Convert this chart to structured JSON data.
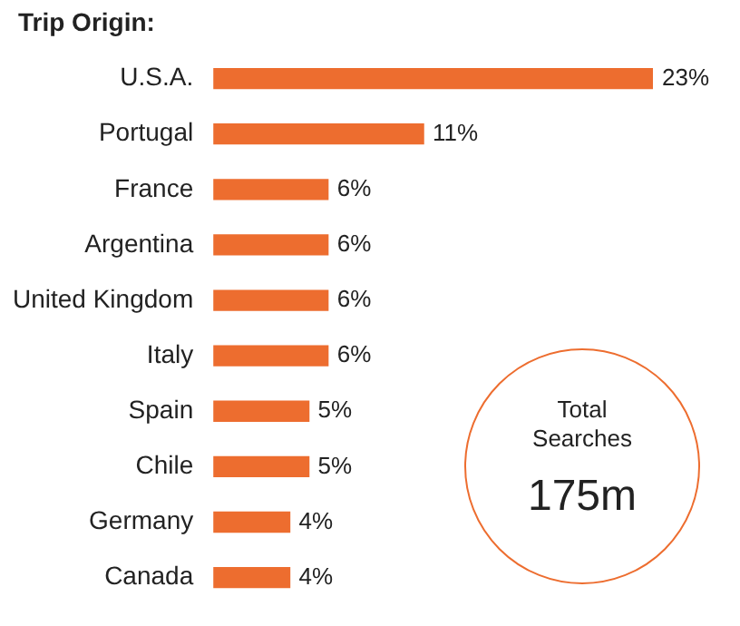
{
  "chart_data": {
    "type": "bar",
    "orientation": "horizontal",
    "title": "Trip Origin:",
    "categories": [
      "U.S.A.",
      "Portugal",
      "France",
      "Argentina",
      "United Kingdom",
      "Italy",
      "Spain",
      "Chile",
      "Germany",
      "Canada"
    ],
    "values": [
      23,
      11,
      6,
      6,
      6,
      6,
      5,
      5,
      4,
      4
    ],
    "value_labels": [
      "23%",
      "11%",
      "6%",
      "6%",
      "6%",
      "6%",
      "5%",
      "5%",
      "4%",
      "4%"
    ],
    "color": "#ed6d2f",
    "legend": false,
    "annotations": [
      "Total Searches",
      "175m"
    ]
  }
}
